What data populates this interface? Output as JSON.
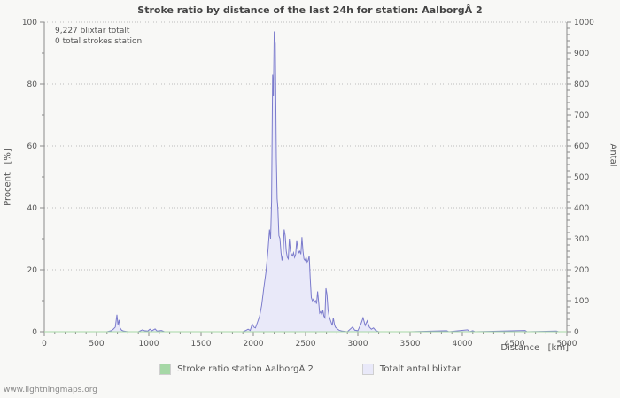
{
  "title": "Stroke ratio by distance of the last 24h for station: AalborgÂ 2",
  "annotations": {
    "line1": "9,227 blixtar totalt",
    "line2": "0 total strokes station"
  },
  "axes": {
    "x": {
      "label": "Distance   [km]"
    },
    "y_left": {
      "label": "Procent   [%]"
    },
    "y_right": {
      "label": "Antal"
    }
  },
  "legend": [
    {
      "label": "Stroke ratio station AalborgÂ 2",
      "color": "#a6d8a6"
    },
    {
      "label": "Totalt antal blixtar",
      "color": "#e9e9f9"
    }
  ],
  "footer": "www.lightningmaps.org",
  "chart_data": {
    "type": "area",
    "title": "Stroke ratio by distance of the last 24h for station: AalborgÂ 2",
    "xlabel": "Distance [km]",
    "ylabel_left": "Procent [%]",
    "ylabel_right": "Antal",
    "x_range": [
      0,
      5000
    ],
    "y_left_range": [
      0,
      100
    ],
    "y_right_range": [
      0,
      1000
    ],
    "x_major_ticks": [
      0,
      500,
      1000,
      1500,
      2000,
      2500,
      3000,
      3500,
      4000,
      4500,
      5000
    ],
    "y_left_ticks": [
      0,
      20,
      40,
      60,
      80,
      100
    ],
    "y_right_ticks": [
      0,
      100,
      200,
      300,
      400,
      500,
      600,
      700,
      800,
      900,
      1000
    ],
    "grid": true,
    "legend_position": "bottom",
    "series": [
      {
        "name": "Stroke ratio station AalborgÂ 2",
        "axis": "left",
        "stroke": "#a6d8a6",
        "points": [
          [
            0,
            0
          ],
          [
            5000,
            0
          ]
        ]
      },
      {
        "name": "Totalt antal blixtar",
        "axis": "right",
        "stroke": "#7b7bcc",
        "fill": "#e9e9f9",
        "points": [
          [
            0,
            0
          ],
          [
            600,
            0
          ],
          [
            640,
            3
          ],
          [
            660,
            8
          ],
          [
            680,
            15
          ],
          [
            695,
            55
          ],
          [
            705,
            22
          ],
          [
            715,
            38
          ],
          [
            725,
            12
          ],
          [
            740,
            5
          ],
          [
            760,
            2
          ],
          [
            800,
            0
          ],
          [
            900,
            0
          ],
          [
            940,
            6
          ],
          [
            960,
            3
          ],
          [
            990,
            2
          ],
          [
            1010,
            8
          ],
          [
            1030,
            3
          ],
          [
            1060,
            9
          ],
          [
            1080,
            2
          ],
          [
            1120,
            4
          ],
          [
            1150,
            0
          ],
          [
            1900,
            0
          ],
          [
            1930,
            4
          ],
          [
            1950,
            8
          ],
          [
            1970,
            4
          ],
          [
            1990,
            25
          ],
          [
            2005,
            15
          ],
          [
            2020,
            12
          ],
          [
            2040,
            30
          ],
          [
            2060,
            50
          ],
          [
            2080,
            85
          ],
          [
            2100,
            140
          ],
          [
            2120,
            190
          ],
          [
            2140,
            260
          ],
          [
            2155,
            330
          ],
          [
            2165,
            300
          ],
          [
            2175,
            420
          ],
          [
            2185,
            830
          ],
          [
            2192,
            760
          ],
          [
            2200,
            970
          ],
          [
            2210,
            930
          ],
          [
            2220,
            560
          ],
          [
            2228,
            430
          ],
          [
            2235,
            400
          ],
          [
            2245,
            310
          ],
          [
            2255,
            300
          ],
          [
            2265,
            255
          ],
          [
            2275,
            230
          ],
          [
            2285,
            250
          ],
          [
            2295,
            330
          ],
          [
            2305,
            310
          ],
          [
            2315,
            260
          ],
          [
            2325,
            240
          ],
          [
            2335,
            235
          ],
          [
            2345,
            300
          ],
          [
            2355,
            260
          ],
          [
            2365,
            250
          ],
          [
            2375,
            245
          ],
          [
            2385,
            255
          ],
          [
            2395,
            240
          ],
          [
            2405,
            250
          ],
          [
            2415,
            295
          ],
          [
            2425,
            270
          ],
          [
            2435,
            255
          ],
          [
            2445,
            260
          ],
          [
            2455,
            250
          ],
          [
            2465,
            305
          ],
          [
            2475,
            260
          ],
          [
            2485,
            235
          ],
          [
            2495,
            230
          ],
          [
            2505,
            240
          ],
          [
            2515,
            225
          ],
          [
            2525,
            230
          ],
          [
            2535,
            245
          ],
          [
            2545,
            170
          ],
          [
            2555,
            110
          ],
          [
            2565,
            100
          ],
          [
            2575,
            105
          ],
          [
            2585,
            95
          ],
          [
            2595,
            100
          ],
          [
            2605,
            90
          ],
          [
            2615,
            130
          ],
          [
            2625,
            95
          ],
          [
            2635,
            60
          ],
          [
            2645,
            65
          ],
          [
            2655,
            55
          ],
          [
            2665,
            70
          ],
          [
            2675,
            50
          ],
          [
            2685,
            45
          ],
          [
            2695,
            140
          ],
          [
            2705,
            120
          ],
          [
            2715,
            70
          ],
          [
            2725,
            50
          ],
          [
            2735,
            40
          ],
          [
            2745,
            30
          ],
          [
            2755,
            20
          ],
          [
            2765,
            45
          ],
          [
            2775,
            25
          ],
          [
            2785,
            15
          ],
          [
            2800,
            10
          ],
          [
            2820,
            5
          ],
          [
            2850,
            2
          ],
          [
            2900,
            0
          ],
          [
            2950,
            15
          ],
          [
            2970,
            5
          ],
          [
            3000,
            3
          ],
          [
            3030,
            25
          ],
          [
            3050,
            45
          ],
          [
            3070,
            20
          ],
          [
            3090,
            35
          ],
          [
            3110,
            15
          ],
          [
            3130,
            8
          ],
          [
            3150,
            12
          ],
          [
            3170,
            4
          ],
          [
            3200,
            0
          ],
          [
            3500,
            0
          ],
          [
            3850,
            3
          ],
          [
            3870,
            0
          ],
          [
            4050,
            6
          ],
          [
            4070,
            0
          ],
          [
            4100,
            3
          ],
          [
            4120,
            0
          ],
          [
            4600,
            4
          ],
          [
            4620,
            0
          ],
          [
            4900,
            2
          ],
          [
            4920,
            0
          ],
          [
            5000,
            0
          ]
        ]
      }
    ]
  }
}
